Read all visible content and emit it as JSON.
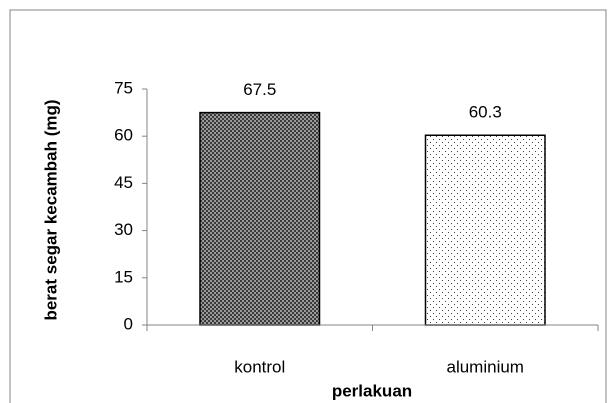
{
  "chart_data": {
    "type": "bar",
    "categories": [
      "kontrol",
      "aluminium"
    ],
    "values": [
      67.5,
      60.3
    ],
    "xlabel": "perlakuan",
    "ylabel": "berat segar kecambah (mg)",
    "ylim": [
      0,
      75
    ],
    "yticks": [
      0,
      15,
      30,
      45,
      60,
      75
    ],
    "grid": false
  }
}
